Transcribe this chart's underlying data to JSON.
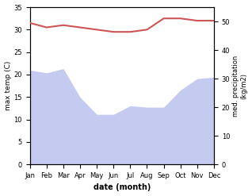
{
  "months": [
    "Jan",
    "Feb",
    "Mar",
    "Apr",
    "May",
    "Jun",
    "Jul",
    "Aug",
    "Sep",
    "Oct",
    "Nov",
    "Dec"
  ],
  "temperature": [
    31.5,
    30.5,
    31.0,
    30.5,
    30.0,
    29.5,
    29.5,
    30.0,
    32.5,
    32.5,
    32.0,
    32.0
  ],
  "precipitation": [
    33.0,
    32.0,
    33.5,
    23.5,
    17.5,
    17.5,
    20.5,
    20.0,
    20.0,
    26.0,
    30.0,
    30.5
  ],
  "temp_color": "#cc5555",
  "precip_fill_color": "#c5caf0",
  "xlabel": "date (month)",
  "ylabel_left": "max temp (C)",
  "ylabel_right": "med. precipitation\n(kg/m2)",
  "ylim_left": [
    0,
    35
  ],
  "ylim_right": [
    0,
    55
  ],
  "yticks_left": [
    0,
    5,
    10,
    15,
    20,
    25,
    30,
    35
  ],
  "yticks_right": [
    0,
    10,
    20,
    30,
    40,
    50
  ],
  "bg_color": "#ffffff",
  "line_width": 1.5
}
